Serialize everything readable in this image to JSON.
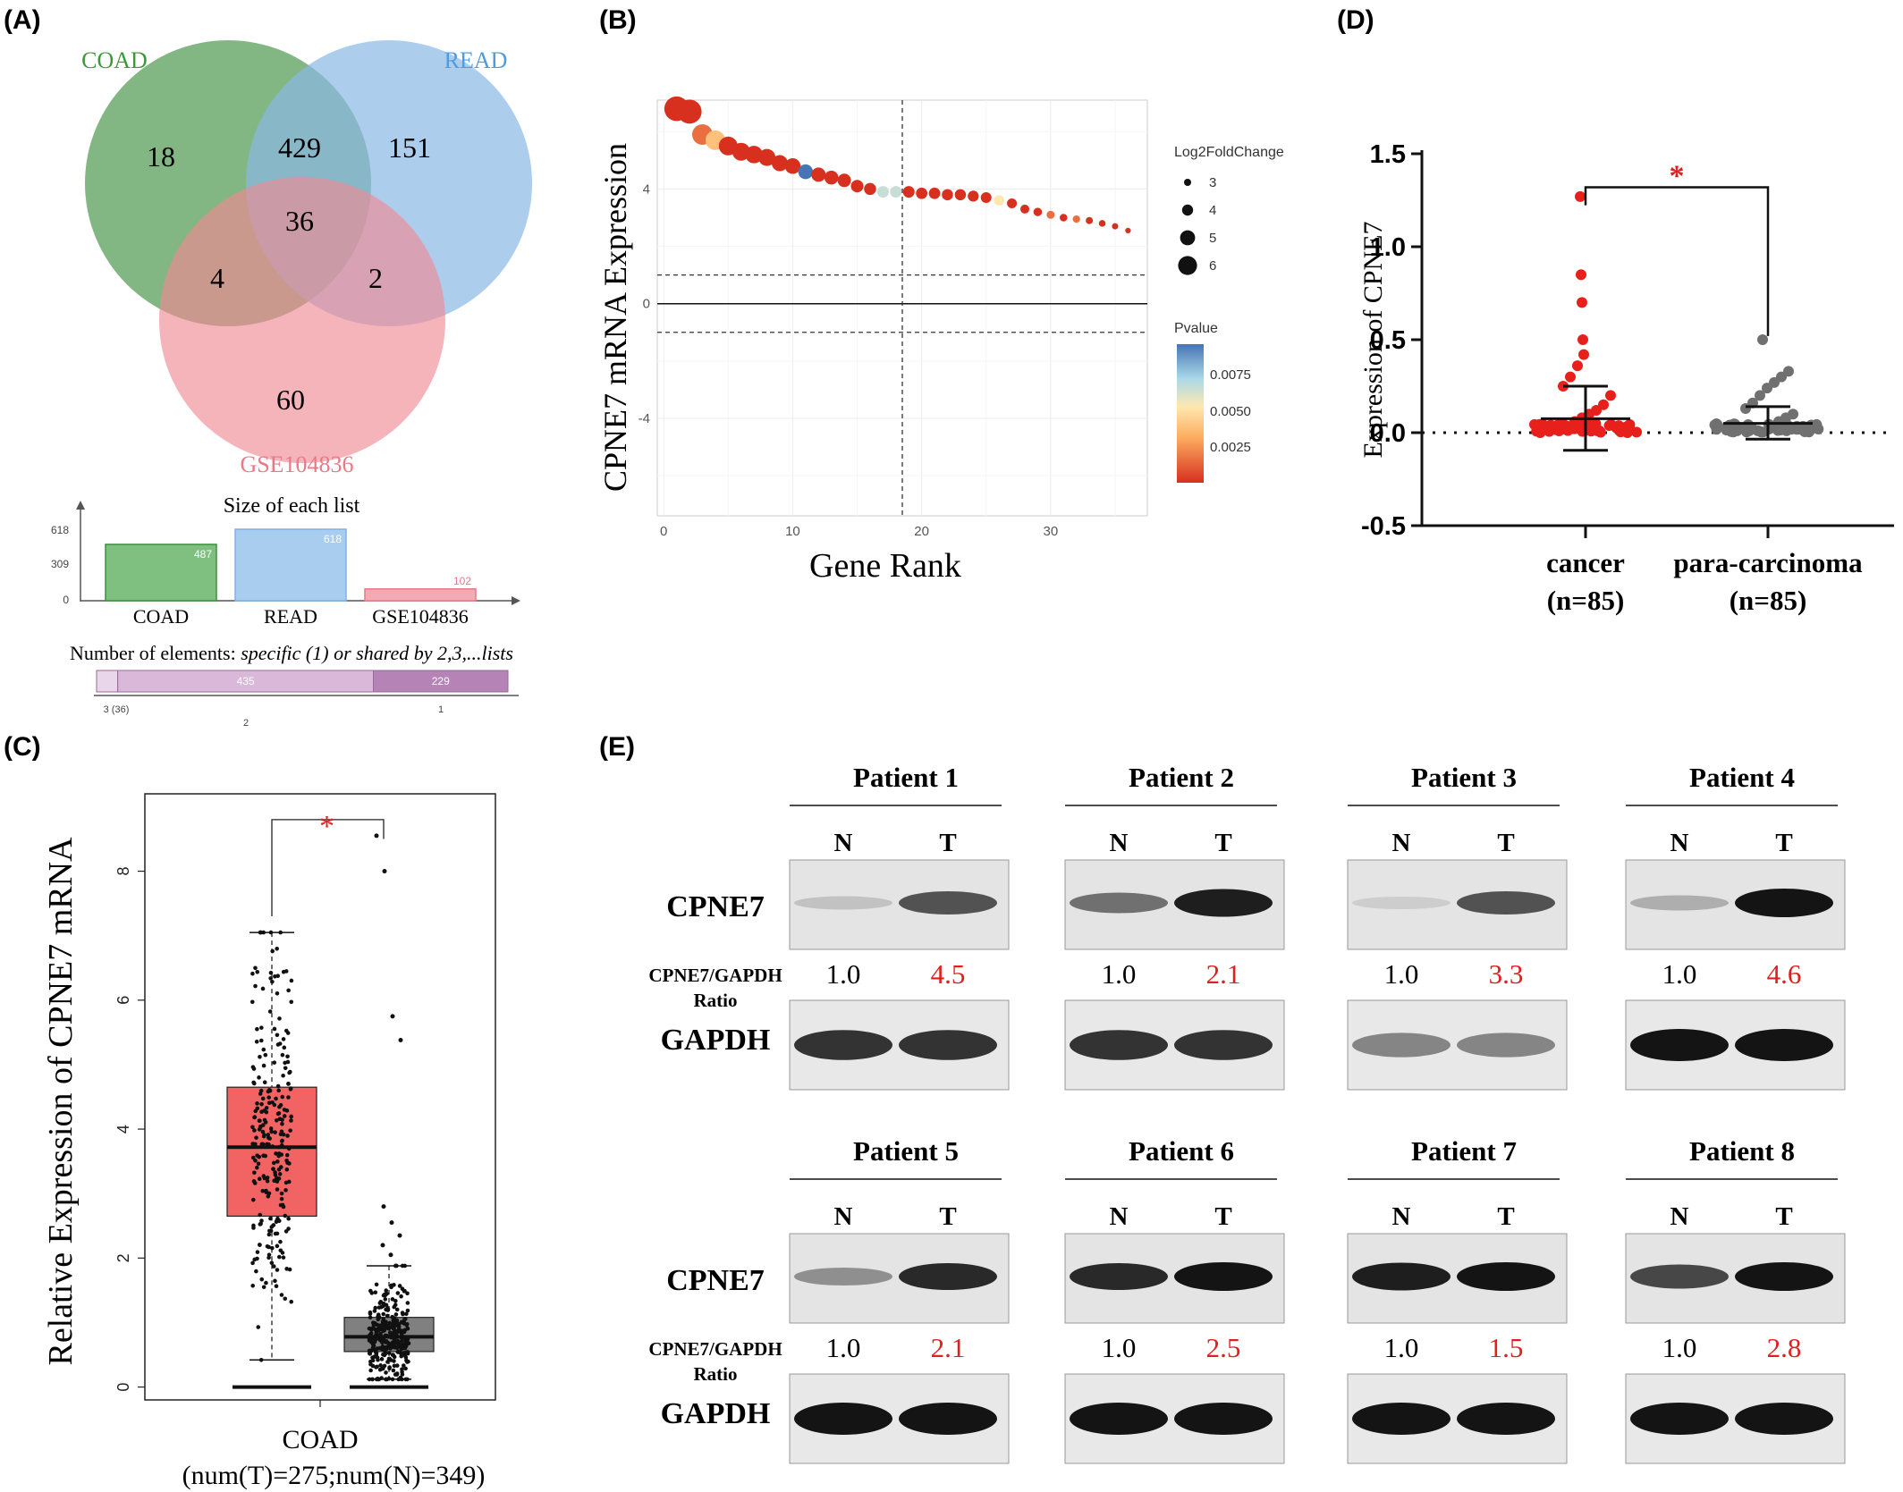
{
  "panels": {
    "a": "(A)",
    "b": "(B)",
    "c": "(C)",
    "d": "(D)",
    "e": "(E)"
  },
  "venn": {
    "sets": [
      {
        "name": "COAD",
        "color": "#3f8f3f"
      },
      {
        "name": "READ",
        "color": "#4d9be0"
      },
      {
        "name": "GSE104836",
        "color": "#e87a88"
      }
    ],
    "counts": {
      "coad_only": "18",
      "read_only": "151",
      "gse_only": "60",
      "coad_read": "429",
      "all_three": "36",
      "coad_gse": "4",
      "read_gse": "2"
    },
    "size_title": "Size of each list",
    "size_axis_ticks": [
      "618",
      "309",
      "0"
    ],
    "bars": [
      {
        "name": "COAD",
        "value": 487,
        "label": "487"
      },
      {
        "name": "READ",
        "value": 618,
        "label": "618"
      },
      {
        "name": "GSE104836",
        "value": 102,
        "label": "102"
      }
    ],
    "elements_title": "Number of elements: ",
    "elements_title_italic": "specific (1) or shared by 2,3,...lists",
    "segments": [
      {
        "label": "",
        "value": 36
      },
      {
        "label": "435",
        "value": 435
      },
      {
        "label": "229",
        "value": 229
      }
    ],
    "segment_ticks": [
      "3 (36)",
      "2",
      "1"
    ]
  },
  "chart_data": [
    {
      "type": "scatter",
      "panel": "B",
      "xlabel": "Gene Rank",
      "ylabel": "CPNE7 mRNA Expression",
      "xlim": [
        -0.5,
        37.5
      ],
      "ylim": [
        -7.4,
        7.1
      ],
      "xticks": [
        "0",
        "10",
        "20",
        "30"
      ],
      "yticks": [
        "4",
        "0",
        "-4"
      ],
      "hlines_dashed": [
        1,
        -1
      ],
      "hline_solid": 0,
      "vline_dashed": 18.5,
      "size_legend_title": "Log2FoldChange",
      "size_legend": [
        "3",
        "4",
        "5",
        "6"
      ],
      "color_legend_title": "Pvalue",
      "color_legend_ticks": [
        "0.0075",
        "0.0050",
        "0.0025"
      ],
      "x": [
        1,
        2,
        3,
        4,
        5,
        6,
        7,
        8,
        9,
        10,
        11,
        12,
        13,
        14,
        15,
        16,
        17,
        18,
        19,
        20,
        21,
        22,
        23,
        24,
        25,
        26,
        27,
        28,
        29,
        30,
        31,
        32,
        33,
        34,
        35,
        36
      ],
      "y": [
        6.8,
        6.7,
        5.9,
        5.7,
        5.5,
        5.3,
        5.2,
        5.1,
        4.9,
        4.8,
        4.6,
        4.5,
        4.4,
        4.3,
        4.1,
        4.0,
        3.9,
        3.9,
        3.9,
        3.85,
        3.85,
        3.8,
        3.8,
        3.75,
        3.7,
        3.6,
        3.5,
        3.3,
        3.2,
        3.1,
        3.0,
        2.95,
        2.9,
        2.8,
        2.7,
        2.55
      ],
      "pvalue": [
        0.001,
        0.001,
        0.003,
        0.004,
        0.002,
        0.001,
        0.001,
        0.002,
        0.001,
        0.002,
        0.008,
        0.001,
        0.001,
        0.001,
        0.001,
        0.001,
        0.006,
        0.006,
        0.001,
        0.001,
        0.001,
        0.001,
        0.001,
        0.001,
        0.001,
        0.005,
        0.001,
        0.001,
        0.001,
        0.003,
        0.001,
        0.003,
        0.002,
        0.002,
        0.001,
        0.001
      ]
    },
    {
      "type": "box",
      "panel": "C",
      "category": "COAD",
      "category_sub": "(num(T)=275;num(N)=349)",
      "ylabel": "Relative Expression of CPNE7 mRNA",
      "ylim": [
        -0.2,
        9.2
      ],
      "yticks": [
        "0",
        "2",
        "4",
        "6",
        "8"
      ],
      "significance": "*",
      "series": [
        {
          "name": "T",
          "color": "#f26464",
          "q1": 2.65,
          "median": 3.72,
          "q3": 4.65,
          "whisker_low": 0.42,
          "whisker_high": 7.05,
          "n": 275
        },
        {
          "name": "N",
          "color": "#808080",
          "q1": 0.55,
          "median": 0.78,
          "q3": 1.08,
          "whisker_low": 0.12,
          "whisker_high": 1.88,
          "n": 349,
          "outliers": [
            8.55,
            8.0,
            5.75,
            5.38,
            2.8,
            2.55,
            2.35,
            2.2,
            2.05
          ]
        }
      ]
    },
    {
      "type": "scatter",
      "panel": "D",
      "categories": [
        "cancer",
        "para-carcinoma"
      ],
      "category_n": [
        "(n=85)",
        "(n=85)"
      ],
      "ylabel": "Expression of CPNE7",
      "ylim": [
        -0.5,
        1.5
      ],
      "yticks": [
        "1.5",
        "1.0",
        "0.5",
        "0.0",
        "-0.5"
      ],
      "significance": "*",
      "series": [
        {
          "name": "cancer",
          "color": "#e8201c",
          "mean": 0.075,
          "sd_low": -0.095,
          "sd_high": 0.25,
          "points": [
            1.27,
            0.85,
            0.7,
            0.5,
            0.42,
            0.36,
            0.3,
            0.25,
            0.2,
            0.15,
            0.12,
            0.1,
            0.08,
            0.06
          ]
        },
        {
          "name": "para-carcinoma",
          "color": "#707070",
          "mean": 0.05,
          "sd_low": -0.035,
          "sd_high": 0.14,
          "points": [
            0.5,
            0.33,
            0.3,
            0.27,
            0.24,
            0.2,
            0.16,
            0.13,
            0.1,
            0.08,
            0.06
          ]
        }
      ]
    }
  ],
  "western": {
    "lane_n": "N",
    "lane_t": "T",
    "row_target": "CPNE7",
    "row_ratio": "CPNE7/GAPDH",
    "row_ratio_2": "Ratio",
    "row_control": "GAPDH",
    "patients": [
      {
        "name": "Patient 1",
        "n_ratio": "1.0",
        "t_ratio": "4.5",
        "n_band": 0.15,
        "t_band": 0.7
      },
      {
        "name": "Patient 2",
        "n_ratio": "1.0",
        "t_ratio": "2.1",
        "n_band": 0.55,
        "t_band": 0.95
      },
      {
        "name": "Patient 3",
        "n_ratio": "1.0",
        "t_ratio": "3.3",
        "n_band": 0.1,
        "t_band": 0.7
      },
      {
        "name": "Patient 4",
        "n_ratio": "1.0",
        "t_ratio": "4.6",
        "n_band": 0.25,
        "t_band": 1.0
      },
      {
        "name": "Patient 5",
        "n_ratio": "1.0",
        "t_ratio": "2.1",
        "n_band": 0.4,
        "t_band": 0.9
      },
      {
        "name": "Patient 6",
        "n_ratio": "1.0",
        "t_ratio": "2.5",
        "n_band": 0.9,
        "t_band": 1.0
      },
      {
        "name": "Patient 7",
        "n_ratio": "1.0",
        "t_ratio": "1.5",
        "n_band": 0.95,
        "t_band": 1.0
      },
      {
        "name": "Patient 8",
        "n_ratio": "1.0",
        "t_ratio": "2.8",
        "n_band": 0.75,
        "t_band": 1.0
      }
    ]
  }
}
